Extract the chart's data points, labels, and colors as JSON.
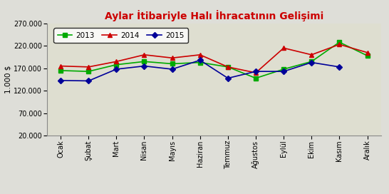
{
  "title": "Aylar İtibariyle Halı İhracatının Gelişimi",
  "ylabel": "1.000 $",
  "months": [
    "Ocak",
    "Şubat",
    "Mart",
    "Nisan",
    "Mayıs",
    "Haziran",
    "Temmuz",
    "Ağustos",
    "Eylül",
    "Ekim",
    "Kasım",
    "Aralık"
  ],
  "series": {
    "2013": [
      165000,
      163000,
      178000,
      185000,
      180000,
      183000,
      173000,
      148000,
      168000,
      185000,
      228000,
      198000
    ],
    "2014": [
      175000,
      173000,
      185000,
      200000,
      193000,
      200000,
      173000,
      160000,
      215000,
      200000,
      223000,
      205000
    ],
    "2015": [
      143000,
      142000,
      168000,
      175000,
      168000,
      188000,
      148000,
      163000,
      163000,
      183000,
      173000,
      null
    ]
  },
  "colors": {
    "2013": "#00aa00",
    "2014": "#cc0000",
    "2015": "#000099"
  },
  "markers": {
    "2013": "s",
    "2014": "^",
    "2015": "D"
  },
  "ylim": [
    20000,
    270000
  ],
  "yticks": [
    20000,
    70000,
    120000,
    170000,
    220000,
    270000
  ],
  "background_color": "#deded8",
  "plot_bg_color": "#deded0",
  "title_color": "#cc0000",
  "title_fontsize": 10,
  "legend_fontsize": 7.5,
  "tick_fontsize": 7,
  "ylabel_fontsize": 7.5
}
